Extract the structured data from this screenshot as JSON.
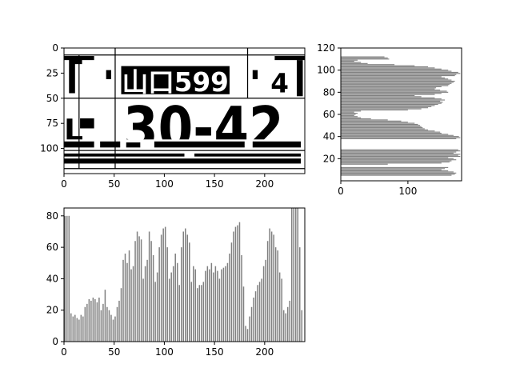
{
  "chart_data": [
    {
      "type": "heatmap",
      "panel": "binarized-license-plate-image",
      "xlim": [
        0,
        240
      ],
      "ylim": [
        120,
        0
      ],
      "xticks": [
        "0",
        "50",
        "100",
        "150",
        "200"
      ],
      "yticks": [
        "0",
        "25",
        "50",
        "75",
        "100"
      ],
      "grid": "off",
      "colors": {
        "foreground": "#000000",
        "background": "#ffffff"
      },
      "image_text": [
        "山口599",
        "30-42"
      ],
      "divider_lines": {
        "horizontal_y": [
          7,
          50,
          102,
          120
        ],
        "vertical_x": [
          15,
          51,
          183
        ]
      }
    },
    {
      "type": "bar",
      "orientation": "horizontal",
      "panel": "row-projection-profile",
      "xlim": [
        0,
        180
      ],
      "ylim": [
        0,
        120
      ],
      "xticks": [
        "0",
        "100"
      ],
      "yticks": [
        "20",
        "40",
        "60",
        "80",
        "100",
        "120"
      ],
      "color": "#808080",
      "rows": [
        5,
        6,
        7,
        8,
        9,
        10,
        11,
        12,
        15,
        16,
        17,
        18,
        19,
        20,
        21,
        22,
        23,
        24,
        25,
        26,
        27,
        28,
        38,
        39,
        40,
        41,
        42,
        43,
        44,
        45,
        46,
        47,
        48,
        49,
        50,
        51,
        52,
        53,
        54,
        55,
        56,
        57,
        58,
        59,
        60,
        61,
        62,
        63,
        64,
        65,
        66,
        67,
        68,
        69,
        70,
        71,
        72,
        73,
        74,
        75,
        76,
        77,
        78,
        79,
        80,
        81,
        82,
        83,
        84,
        85,
        86,
        87,
        88,
        89,
        90,
        91,
        92,
        93,
        94,
        95,
        96,
        97,
        98,
        99,
        100,
        101,
        102,
        103,
        104,
        105,
        106,
        107,
        108,
        109,
        110,
        111,
        112
      ],
      "values": [
        165,
        170,
        172,
        168,
        160,
        150,
        155,
        160,
        70,
        150,
        162,
        165,
        172,
        168,
        160,
        178,
        175,
        178,
        168,
        172,
        178,
        175,
        172,
        178,
        176,
        168,
        160,
        150,
        148,
        140,
        130,
        125,
        122,
        120,
        118,
        115,
        110,
        100,
        90,
        70,
        45,
        30,
        25,
        20,
        22,
        25,
        20,
        30,
        100,
        120,
        130,
        135,
        140,
        145,
        150,
        152,
        148,
        155,
        150,
        140,
        120,
        110,
        140,
        150,
        160,
        158,
        148,
        140,
        142,
        150,
        160,
        162,
        165,
        168,
        170,
        165,
        160,
        155,
        150,
        170,
        172,
        178,
        175,
        165,
        160,
        150,
        140,
        130,
        110,
        80,
        40,
        30,
        20,
        25,
        72,
        70,
        65
      ]
    },
    {
      "type": "bar",
      "orientation": "vertical",
      "panel": "column-projection-profile",
      "xlim": [
        0,
        240
      ],
      "ylim": [
        0,
        85
      ],
      "xticks": [
        "0",
        "50",
        "100",
        "150",
        "200"
      ],
      "yticks": [
        "0",
        "20",
        "40",
        "60",
        "80"
      ],
      "color": "#808080",
      "x": [
        1,
        3,
        5,
        7,
        9,
        11,
        13,
        15,
        17,
        19,
        21,
        23,
        25,
        27,
        29,
        31,
        33,
        35,
        37,
        39,
        41,
        43,
        45,
        47,
        49,
        51,
        53,
        55,
        57,
        59,
        61,
        63,
        65,
        67,
        69,
        71,
        73,
        75,
        77,
        79,
        81,
        83,
        85,
        87,
        89,
        91,
        93,
        95,
        97,
        99,
        101,
        103,
        105,
        107,
        109,
        111,
        113,
        115,
        117,
        119,
        121,
        123,
        125,
        127,
        129,
        131,
        133,
        135,
        137,
        139,
        141,
        143,
        145,
        147,
        149,
        151,
        153,
        155,
        157,
        159,
        161,
        163,
        165,
        167,
        169,
        171,
        173,
        175,
        177,
        179,
        181,
        183,
        185,
        187,
        189,
        191,
        193,
        195,
        197,
        199,
        201,
        203,
        205,
        207,
        209,
        211,
        213,
        215,
        217,
        219,
        221,
        223,
        225,
        227,
        229,
        231,
        233,
        235,
        237
      ],
      "values": [
        80,
        80,
        80,
        18,
        16,
        17,
        15,
        14,
        17,
        16,
        22,
        24,
        27,
        26,
        28,
        27,
        25,
        28,
        20,
        24,
        33,
        22,
        20,
        17,
        14,
        16,
        22,
        26,
        34,
        52,
        56,
        50,
        58,
        46,
        48,
        64,
        70,
        67,
        65,
        40,
        48,
        52,
        70,
        64,
        55,
        38,
        44,
        60,
        68,
        72,
        73,
        60,
        40,
        44,
        48,
        56,
        50,
        36,
        60,
        70,
        72,
        68,
        63,
        38,
        48,
        46,
        34,
        36,
        36,
        38,
        45,
        48,
        46,
        50,
        44,
        48,
        45,
        40,
        46,
        47,
        48,
        50,
        56,
        63,
        70,
        73,
        74,
        76,
        55,
        35,
        10,
        8,
        16,
        22,
        28,
        32,
        36,
        38,
        40,
        48,
        52,
        64,
        72,
        70,
        68,
        60,
        58,
        44,
        40,
        20,
        18,
        22,
        26,
        85,
        85,
        85,
        85,
        60,
        20
      ]
    }
  ]
}
